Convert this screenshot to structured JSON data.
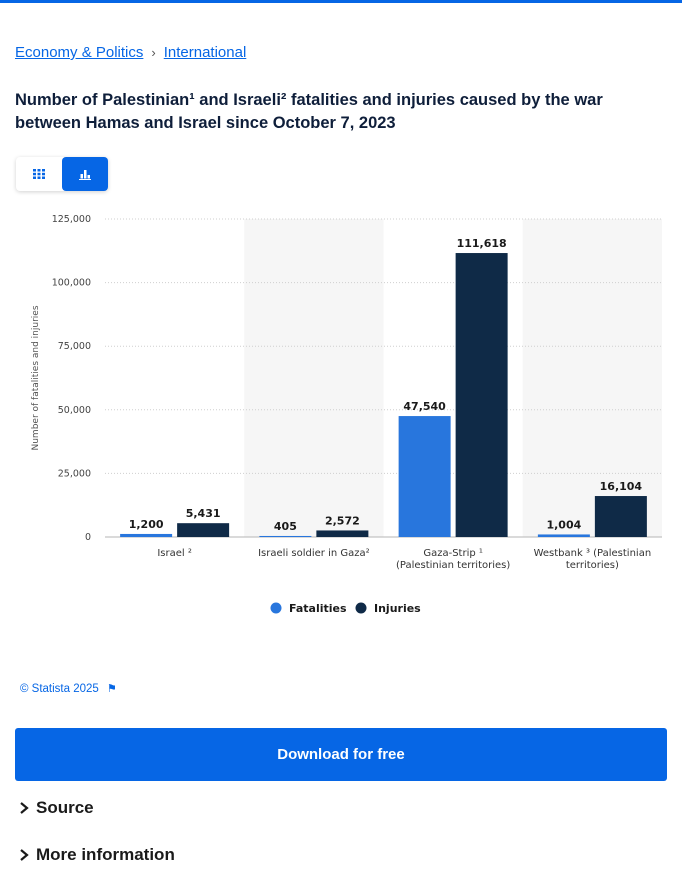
{
  "breadcrumb": {
    "items": [
      "Economy & Politics",
      "International"
    ],
    "separator": "›"
  },
  "title": "Number of Palestinian¹ and Israeli² fatalities and injuries caused by the war between Hamas and Israel since October 7, 2023",
  "view_toggle": {
    "table_icon": "table-grid-icon",
    "chart_icon": "bar-chart-icon",
    "active": "chart"
  },
  "colors": {
    "accent": "#0666e5",
    "fatalities": "#2876dd",
    "injuries": "#0f2a47"
  },
  "chart_data": {
    "type": "bar",
    "categories": [
      "Israel ²",
      "Israeli soldier in Gaza²",
      "Gaza-Strip ¹ (Palestinian territories)",
      "Westbank ³ (Palestinian territories)"
    ],
    "category_lines": [
      [
        "Israel ²"
      ],
      [
        "Israeli soldier in Gaza²"
      ],
      [
        "Gaza-Strip ¹",
        "(Palestinian territories)"
      ],
      [
        "Westbank ³ (Palestinian",
        "territories)"
      ]
    ],
    "series": [
      {
        "name": "Fatalities",
        "values": [
          1200,
          405,
          47540,
          1004
        ],
        "labels": [
          "1,200",
          "405",
          "47,540",
          "1,004"
        ]
      },
      {
        "name": "Injuries",
        "values": [
          5431,
          2572,
          111618,
          16104
        ],
        "labels": [
          "5,431",
          "2,572",
          "111,618",
          "16,104"
        ]
      }
    ],
    "ylabel": "Number of fatalities and injuries",
    "xlabel": "",
    "ylim": [
      0,
      125000
    ],
    "yticks": [
      0,
      25000,
      50000,
      75000,
      100000,
      125000
    ],
    "ytick_labels": [
      "0",
      "25,000",
      "50,000",
      "75,000",
      "100,000",
      "125,000"
    ],
    "grid": true,
    "legend_position": "bottom"
  },
  "credit": "© Statista 2025",
  "download_label": "Download for free",
  "accordions": [
    "Source",
    "More information"
  ]
}
